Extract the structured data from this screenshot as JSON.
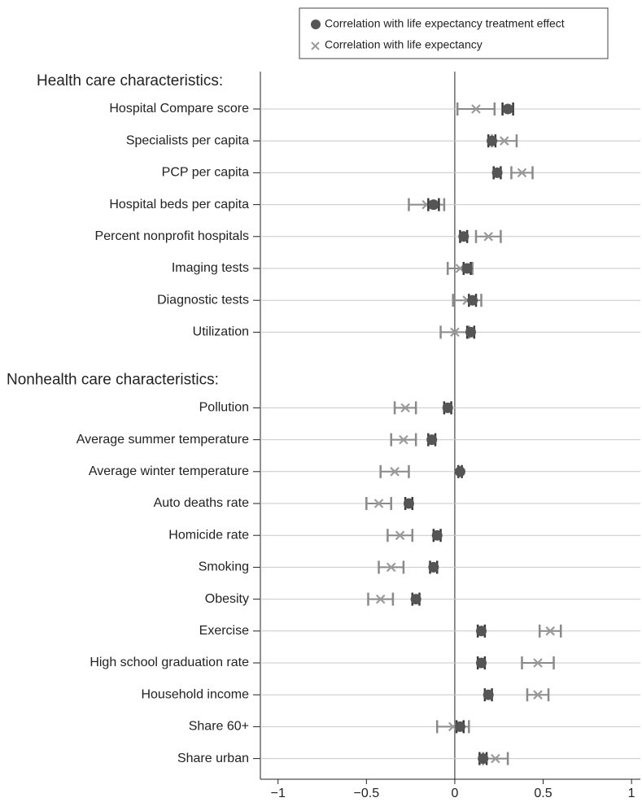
{
  "chart_data": {
    "type": "dot",
    "xlim": [
      -1.1,
      1.05
    ],
    "xticks": [
      {
        "value": -1,
        "label": "−1"
      },
      {
        "value": -0.5,
        "label": "−0.5"
      },
      0,
      0.5,
      1
    ],
    "series": [
      {
        "name": "Correlation with life expectancy treatment effect",
        "color": "#555555",
        "marker": "circle"
      },
      {
        "name": "Correlation with life expectancy",
        "color": "#9a9a9a",
        "marker": "x"
      }
    ],
    "sections": [
      {
        "title": "Health care characteristics:",
        "categories": [
          "Hospital Compare score",
          "Specialists per capita",
          "PCP per capita",
          "Hospital beds per capita",
          "Percent nonprofit hospitals",
          "Imaging tests",
          "Diagnostic tests",
          "Utilization"
        ],
        "series": [
          {
            "values": [
              0.3,
              0.21,
              0.24,
              -0.12,
              0.05,
              0.07,
              0.1,
              0.09
            ],
            "errors": [
              0.03,
              0.02,
              0.02,
              0.03,
              0.02,
              0.02,
              0.02,
              0.02
            ]
          },
          {
            "values": [
              0.12,
              0.28,
              0.38,
              -0.16,
              0.19,
              0.03,
              0.07,
              0.0
            ],
            "errors": [
              0.105,
              0.07,
              0.06,
              0.1,
              0.07,
              0.07,
              0.08,
              0.08
            ]
          }
        ]
      },
      {
        "title": "Nonhealth care characteristics:",
        "categories": [
          "Pollution",
          "Average summer temperature",
          "Average winter temperature",
          "Auto deaths rate",
          "Homicide rate",
          "Smoking",
          "Obesity",
          "Exercise",
          "High school graduation rate",
          "Household income",
          "Share 60+",
          "Share urban"
        ],
        "series": [
          {
            "values": [
              -0.04,
              -0.13,
              0.03,
              -0.26,
              -0.1,
              -0.12,
              -0.22,
              0.15,
              0.15,
              0.19,
              0.03,
              0.16
            ],
            "errors": [
              0.02,
              0.02,
              0.01,
              0.02,
              0.02,
              0.02,
              0.02,
              0.02,
              0.02,
              0.02,
              0.02,
              0.02
            ]
          },
          {
            "values": [
              -0.28,
              -0.29,
              -0.34,
              -0.43,
              -0.31,
              -0.36,
              -0.42,
              0.54,
              0.47,
              0.47,
              -0.01,
              0.23
            ],
            "errors": [
              0.06,
              0.07,
              0.08,
              0.07,
              0.07,
              0.07,
              0.07,
              0.06,
              0.09,
              0.06,
              0.09,
              0.07
            ]
          }
        ]
      }
    ]
  }
}
